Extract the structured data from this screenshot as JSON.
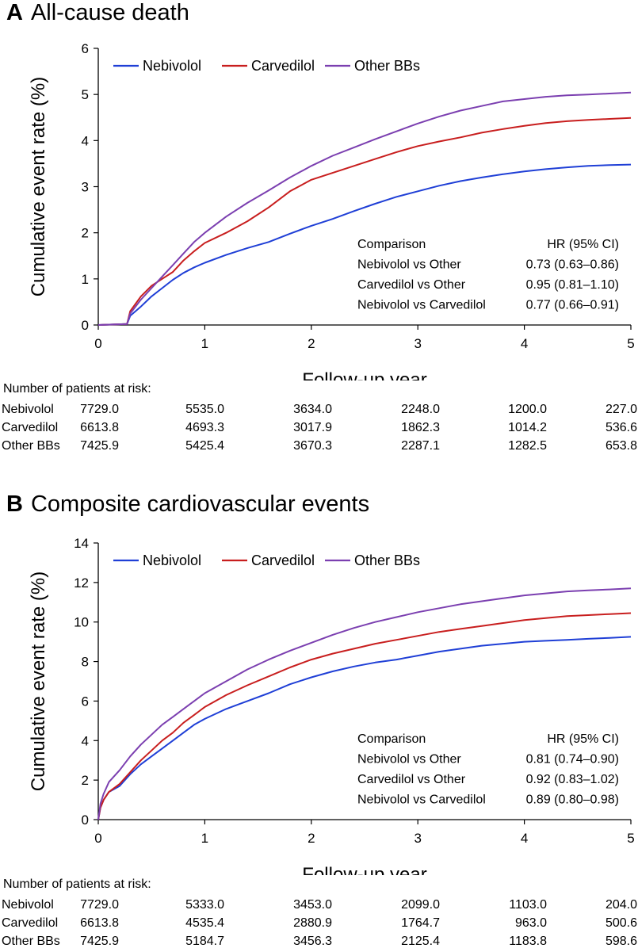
{
  "panels": [
    {
      "letter": "A",
      "title": "All-cause death",
      "chart_data": {
        "type": "line",
        "title": "All-cause death",
        "xlabel": "Follow-up year",
        "ylabel": "Cumulative event rate (%)",
        "xlim": [
          0,
          5
        ],
        "ylim": [
          0,
          6
        ],
        "xticks": [
          0,
          1,
          2,
          3,
          4,
          5
        ],
        "yticks": [
          0,
          1,
          2,
          3,
          4,
          5,
          6
        ],
        "grid": false,
        "legend_position": "top-left",
        "series": [
          {
            "name": "Nebivolol",
            "color": "#1f3fd6",
            "x": [
              0,
              0.27,
              0.3,
              0.4,
              0.5,
              0.6,
              0.7,
              0.8,
              0.9,
              1.0,
              1.2,
              1.4,
              1.6,
              1.8,
              2.0,
              2.2,
              2.4,
              2.6,
              2.8,
              3.0,
              3.2,
              3.4,
              3.6,
              3.8,
              4.0,
              4.2,
              4.4,
              4.6,
              4.8,
              5.0
            ],
            "y": [
              0,
              0.02,
              0.2,
              0.4,
              0.62,
              0.8,
              0.98,
              1.13,
              1.25,
              1.35,
              1.52,
              1.67,
              1.8,
              1.98,
              2.15,
              2.3,
              2.47,
              2.63,
              2.78,
              2.9,
              3.02,
              3.12,
              3.2,
              3.27,
              3.33,
              3.38,
              3.42,
              3.45,
              3.47,
              3.48
            ]
          },
          {
            "name": "Carvedilol",
            "color": "#c81e1e",
            "x": [
              0,
              0.27,
              0.3,
              0.4,
              0.5,
              0.6,
              0.7,
              0.8,
              0.9,
              1.0,
              1.2,
              1.4,
              1.6,
              1.8,
              2.0,
              2.2,
              2.4,
              2.6,
              2.8,
              3.0,
              3.2,
              3.4,
              3.6,
              3.8,
              4.0,
              4.2,
              4.4,
              4.6,
              4.8,
              5.0
            ],
            "y": [
              0,
              0.02,
              0.3,
              0.62,
              0.85,
              1.0,
              1.15,
              1.4,
              1.6,
              1.78,
              2.0,
              2.25,
              2.55,
              2.9,
              3.15,
              3.3,
              3.45,
              3.6,
              3.75,
              3.88,
              3.98,
              4.07,
              4.17,
              4.25,
              4.32,
              4.38,
              4.42,
              4.45,
              4.47,
              4.49
            ]
          },
          {
            "name": "Other BBs",
            "color": "#7b3fb0",
            "x": [
              0,
              0.27,
              0.3,
              0.4,
              0.5,
              0.6,
              0.7,
              0.8,
              0.9,
              1.0,
              1.2,
              1.4,
              1.6,
              1.8,
              2.0,
              2.2,
              2.4,
              2.6,
              2.8,
              3.0,
              3.2,
              3.4,
              3.6,
              3.8,
              4.0,
              4.2,
              4.4,
              4.6,
              4.8,
              5.0
            ],
            "y": [
              0,
              0.02,
              0.25,
              0.55,
              0.8,
              1.05,
              1.3,
              1.55,
              1.8,
              2.0,
              2.35,
              2.65,
              2.92,
              3.2,
              3.45,
              3.67,
              3.85,
              4.03,
              4.2,
              4.37,
              4.52,
              4.65,
              4.75,
              4.85,
              4.9,
              4.95,
              4.98,
              5.0,
              5.02,
              5.04
            ]
          }
        ]
      },
      "hr_table": {
        "header": [
          "Comparison",
          "HR (95% CI)"
        ],
        "rows": [
          [
            "Nebivolol vs Other",
            "0.73 (0.63–0.86)"
          ],
          [
            "Carvedilol vs Other",
            "0.95 (0.81–1.10)"
          ],
          [
            "Nebivolol vs Carvedilol",
            "0.77 (0.66–0.91)"
          ]
        ]
      },
      "at_risk": {
        "title": "Number of patients at risk:",
        "rows": [
          {
            "group": "Nebivolol",
            "values": [
              "7729.0",
              "5535.0",
              "3634.0",
              "2248.0",
              "1200.0",
              "227.0"
            ]
          },
          {
            "group": "Carvedilol",
            "values": [
              "6613.8",
              "4693.3",
              "3017.9",
              "1862.3",
              "1014.2",
              "536.6"
            ]
          },
          {
            "group": "Other BBs",
            "values": [
              "7425.9",
              "5425.4",
              "3670.3",
              "2287.1",
              "1282.5",
              "653.8"
            ]
          }
        ]
      }
    },
    {
      "letter": "B",
      "title": "Composite cardiovascular events",
      "chart_data": {
        "type": "line",
        "title": "Composite cardiovascular events",
        "xlabel": "Follow-up year",
        "ylabel": "Cumulative event rate (%)",
        "xlim": [
          0,
          5
        ],
        "ylim": [
          0,
          14
        ],
        "xticks": [
          0,
          1,
          2,
          3,
          4,
          5
        ],
        "yticks": [
          0,
          2,
          4,
          6,
          8,
          10,
          12,
          14
        ],
        "grid": false,
        "legend_position": "top-left",
        "series": [
          {
            "name": "Nebivolol",
            "color": "#1f3fd6",
            "x": [
              0,
              0.02,
              0.05,
              0.1,
              0.2,
              0.3,
              0.4,
              0.5,
              0.6,
              0.7,
              0.8,
              0.9,
              1.0,
              1.2,
              1.4,
              1.6,
              1.8,
              2.0,
              2.2,
              2.4,
              2.6,
              2.8,
              3.0,
              3.2,
              3.4,
              3.6,
              3.8,
              4.0,
              4.2,
              4.4,
              4.6,
              4.8,
              5.0
            ],
            "y": [
              0,
              0.6,
              1.0,
              1.4,
              1.7,
              2.3,
              2.8,
              3.2,
              3.6,
              4.0,
              4.4,
              4.8,
              5.1,
              5.6,
              6.0,
              6.4,
              6.85,
              7.2,
              7.5,
              7.75,
              7.95,
              8.1,
              8.3,
              8.5,
              8.65,
              8.8,
              8.9,
              9.0,
              9.05,
              9.1,
              9.15,
              9.2,
              9.25
            ]
          },
          {
            "name": "Carvedilol",
            "color": "#c81e1e",
            "x": [
              0,
              0.02,
              0.05,
              0.1,
              0.2,
              0.3,
              0.4,
              0.5,
              0.6,
              0.7,
              0.8,
              0.9,
              1.0,
              1.2,
              1.4,
              1.6,
              1.8,
              2.0,
              2.2,
              2.4,
              2.6,
              2.8,
              3.0,
              3.2,
              3.4,
              3.6,
              3.8,
              4.0,
              4.2,
              4.4,
              4.6,
              4.8,
              5.0
            ],
            "y": [
              0,
              0.6,
              1.0,
              1.4,
              1.8,
              2.4,
              3.0,
              3.5,
              4.0,
              4.4,
              4.9,
              5.3,
              5.7,
              6.3,
              6.8,
              7.25,
              7.7,
              8.1,
              8.4,
              8.65,
              8.9,
              9.1,
              9.3,
              9.5,
              9.65,
              9.8,
              9.95,
              10.1,
              10.2,
              10.3,
              10.35,
              10.4,
              10.45
            ]
          },
          {
            "name": "Other BBs",
            "color": "#7b3fb0",
            "x": [
              0,
              0.02,
              0.05,
              0.1,
              0.2,
              0.3,
              0.4,
              0.5,
              0.6,
              0.7,
              0.8,
              0.9,
              1.0,
              1.2,
              1.4,
              1.6,
              1.8,
              2.0,
              2.2,
              2.4,
              2.6,
              2.8,
              3.0,
              3.2,
              3.4,
              3.6,
              3.8,
              4.0,
              4.2,
              4.4,
              4.6,
              4.8,
              5.0
            ],
            "y": [
              0,
              0.8,
              1.3,
              1.9,
              2.5,
              3.2,
              3.8,
              4.3,
              4.8,
              5.2,
              5.6,
              6.0,
              6.4,
              7.0,
              7.6,
              8.1,
              8.55,
              8.95,
              9.35,
              9.7,
              10.0,
              10.25,
              10.5,
              10.7,
              10.9,
              11.05,
              11.2,
              11.35,
              11.45,
              11.55,
              11.6,
              11.65,
              11.7
            ]
          }
        ]
      },
      "hr_table": {
        "header": [
          "Comparison",
          "HR (95% CI)"
        ],
        "rows": [
          [
            "Nebivolol vs Other",
            "0.81 (0.74–0.90)"
          ],
          [
            "Carvedilol vs Other",
            "0.92 (0.83–1.02)"
          ],
          [
            "Nebivolol vs Carvedilol",
            "0.89 (0.80–0.98)"
          ]
        ]
      },
      "at_risk": {
        "title": "Number of patients at risk:",
        "rows": [
          {
            "group": "Nebivolol",
            "values": [
              "7729.0",
              "5333.0",
              "3453.0",
              "2099.0",
              "1103.0",
              "204.0"
            ]
          },
          {
            "group": "Carvedilol",
            "values": [
              "6613.8",
              "4535.4",
              "2880.9",
              "1764.7",
              "963.0",
              "500.6"
            ]
          },
          {
            "group": "Other BBs",
            "values": [
              "7425.9",
              "5184.7",
              "3456.3",
              "2125.4",
              "1183.8",
              "598.6"
            ]
          }
        ]
      }
    }
  ]
}
